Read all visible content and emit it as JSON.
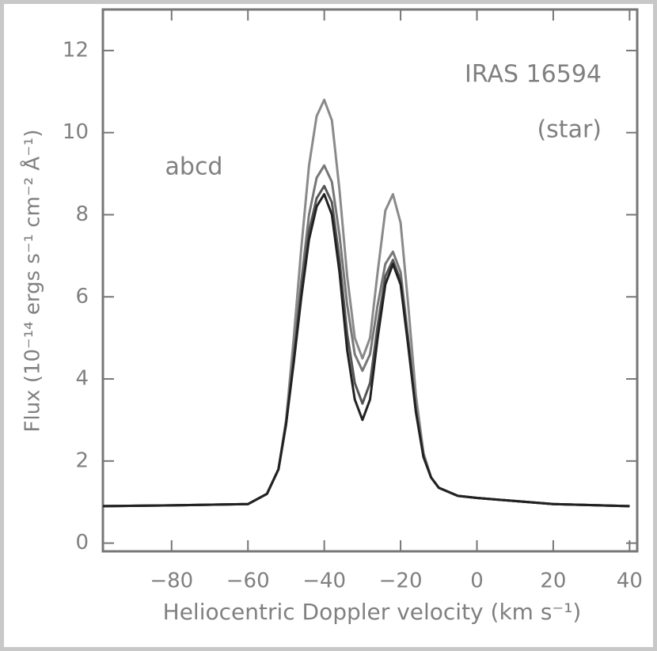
{
  "chart_data": {
    "type": "line",
    "annotations": [
      "IRAS 16594",
      "(star)",
      "abcd"
    ],
    "x_label": "Heliocentric Doppler velocity (km s⁻¹)",
    "y_label": "Flux (10⁻¹⁴ ergs s⁻¹ cm⁻² Å⁻¹)",
    "x": [
      -98,
      -80,
      -60,
      -55,
      -52,
      -50,
      -48,
      -46,
      -44,
      -42,
      -40,
      -38,
      -36,
      -34,
      -32,
      -30,
      -28,
      -26,
      -24,
      -22,
      -20,
      -18,
      -16,
      -14,
      -12,
      -10,
      -5,
      0,
      20,
      40
    ],
    "series": [
      {
        "color": "#8a8a8a",
        "values": [
          0.9,
          0.92,
          0.95,
          1.2,
          1.8,
          3.0,
          5.0,
          7.2,
          9.2,
          10.4,
          10.8,
          10.3,
          8.6,
          6.5,
          5.0,
          4.5,
          5.0,
          6.6,
          8.1,
          8.5,
          7.8,
          5.8,
          3.6,
          2.2,
          1.6,
          1.35,
          1.15,
          1.1,
          0.95,
          0.9
        ]
      },
      {
        "color": "#777777",
        "values": [
          0.9,
          0.92,
          0.95,
          1.2,
          1.8,
          2.9,
          4.6,
          6.4,
          8.0,
          8.9,
          9.2,
          8.8,
          7.5,
          5.8,
          4.6,
          4.2,
          4.6,
          5.8,
          6.8,
          7.1,
          6.6,
          5.0,
          3.3,
          2.1,
          1.6,
          1.35,
          1.15,
          1.1,
          0.95,
          0.9
        ]
      },
      {
        "color": "#555555",
        "values": [
          0.9,
          0.92,
          0.95,
          1.2,
          1.8,
          2.9,
          4.5,
          6.2,
          7.6,
          8.4,
          8.7,
          8.3,
          6.9,
          5.1,
          3.9,
          3.4,
          3.9,
          5.3,
          6.5,
          6.9,
          6.4,
          4.9,
          3.2,
          2.1,
          1.6,
          1.35,
          1.15,
          1.1,
          0.95,
          0.9
        ]
      },
      {
        "color": "#222222",
        "values": [
          0.9,
          0.92,
          0.95,
          1.2,
          1.8,
          2.9,
          4.4,
          6.0,
          7.4,
          8.2,
          8.5,
          8.0,
          6.6,
          4.7,
          3.5,
          3.0,
          3.5,
          5.0,
          6.3,
          6.8,
          6.3,
          4.8,
          3.2,
          2.1,
          1.6,
          1.35,
          1.15,
          1.1,
          0.95,
          0.9
        ]
      }
    ],
    "xlim": [
      -98,
      42
    ],
    "xticks": [
      {
        "value": -80,
        "label": "−80"
      },
      {
        "value": -60,
        "label": "−60"
      },
      {
        "value": -40,
        "label": "−40"
      },
      {
        "value": -20,
        "label": "−20"
      },
      0,
      20,
      40
    ],
    "ylim": [
      -0.2,
      13
    ],
    "yticks": [
      0,
      2,
      4,
      6,
      8,
      10,
      12
    ]
  }
}
